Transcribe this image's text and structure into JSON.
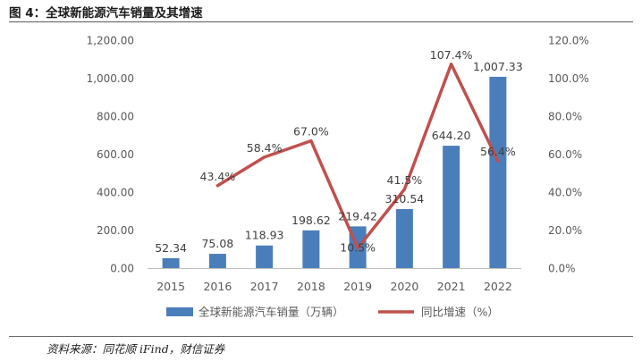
{
  "figure": {
    "title": "图 4：全球新能源汽车销量及其增速",
    "source": "资料来源：同花顺 iFind，财信证券"
  },
  "colors": {
    "bar": "#4a7ebb",
    "line": "#c0504d",
    "text": "#595959",
    "grid": "#d9d9d9"
  },
  "chart_data": {
    "type": "bar",
    "categories": [
      "2015",
      "2016",
      "2017",
      "2018",
      "2019",
      "2020",
      "2021",
      "2022"
    ],
    "series": [
      {
        "name": "全球新能源汽车销量（万辆）",
        "type": "bar",
        "axis": "left",
        "values": [
          52.34,
          75.08,
          118.93,
          198.62,
          219.42,
          310.54,
          644.2,
          1007.33
        ],
        "labels": [
          "52.34",
          "75.08",
          "118.93",
          "198.62",
          "219.42",
          "310.54",
          "644.20",
          "1,007.33"
        ]
      },
      {
        "name": "同比增速（%）",
        "type": "line",
        "axis": "right",
        "values": [
          null,
          43.4,
          58.4,
          67.0,
          10.5,
          41.5,
          107.4,
          56.4
        ],
        "labels": [
          "",
          "43.4%",
          "58.4%",
          "67.0%",
          "10.5%",
          "41.5%",
          "107.4%",
          "56.4%"
        ]
      }
    ],
    "y_left": {
      "min": 0,
      "max": 1200,
      "ticks": [
        0,
        200,
        400,
        600,
        800,
        1000,
        1200
      ],
      "tick_labels": [
        "0.00",
        "200.00",
        "400.00",
        "600.00",
        "800.00",
        "1,000.00",
        "1,200.00"
      ]
    },
    "y_right": {
      "min": 0,
      "max": 120,
      "ticks": [
        0,
        20,
        40,
        60,
        80,
        100,
        120
      ],
      "tick_labels": [
        "0.0%",
        "20.0%",
        "40.0%",
        "60.0%",
        "80.0%",
        "100.0%",
        "120.0%"
      ]
    },
    "grid": false,
    "legend_position": "bottom"
  }
}
